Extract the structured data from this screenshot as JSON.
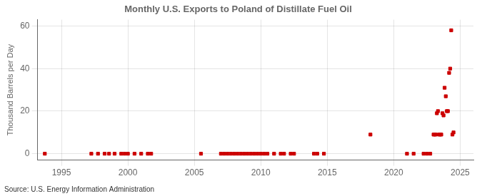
{
  "chart_data": {
    "type": "scatter",
    "title": "Monthly U.S. Exports to Poland of Distillate Fuel Oil",
    "ylabel": "Thousand Barrels per Day",
    "annotations": [
      "Source: U.S. Energy Information Administration"
    ],
    "x": [
      1993.75,
      1997.25,
      1997.75,
      1998.25,
      1998.58,
      1999.0,
      1999.5,
      1999.75,
      2000.0,
      2000.5,
      2001.0,
      2001.5,
      2001.75,
      2005.5,
      2007.0,
      2007.25,
      2007.5,
      2007.75,
      2008.0,
      2008.25,
      2008.5,
      2008.75,
      2009.0,
      2009.25,
      2009.5,
      2009.75,
      2010.0,
      2010.25,
      2010.5,
      2011.0,
      2011.5,
      2011.75,
      2012.25,
      2012.5,
      2014.0,
      2014.25,
      2014.75,
      2018.25,
      2021.0,
      2021.5,
      2022.25,
      2022.5,
      2022.75,
      2023.0,
      2023.08,
      2023.17,
      2023.25,
      2023.33,
      2023.42,
      2023.5,
      2023.58,
      2023.67,
      2023.75,
      2023.83,
      2023.92,
      2024.0,
      2024.08,
      2024.17,
      2024.25,
      2024.33,
      2024.42,
      2024.5
    ],
    "values": [
      0,
      0,
      0,
      0,
      0,
      0,
      0,
      0,
      0,
      0,
      0,
      0,
      0,
      0,
      0,
      0,
      0,
      0,
      0,
      0,
      0,
      0,
      0,
      0,
      0,
      0,
      0,
      0,
      0,
      0,
      0,
      0,
      0,
      0,
      0,
      0,
      0,
      9,
      0,
      0,
      0,
      0,
      0,
      9,
      9,
      9,
      19,
      20,
      9,
      9,
      9,
      19,
      18,
      31,
      27,
      20,
      20,
      38,
      40,
      58,
      9,
      10
    ],
    "color": "#cc0000",
    "marker": "square",
    "xlim": [
      1993.2,
      2026.0
    ],
    "ylim": [
      -3,
      63
    ],
    "xticks": [
      1995,
      2000,
      2005,
      2010,
      2015,
      2020,
      2025
    ],
    "yticks": [
      0,
      20,
      40,
      60
    ],
    "grid": true
  }
}
